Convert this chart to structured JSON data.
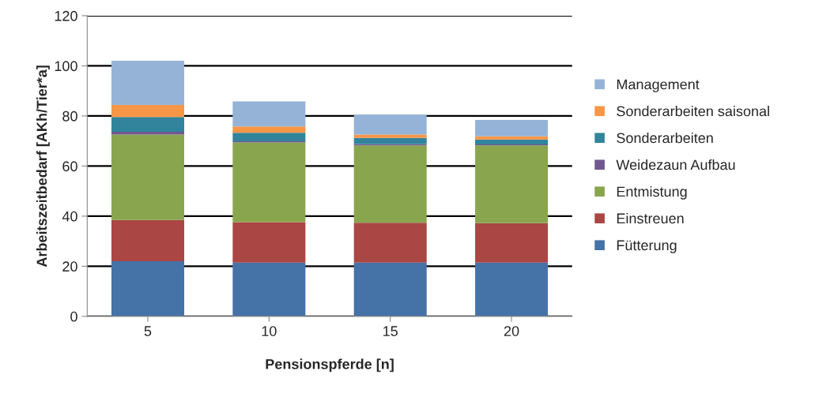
{
  "chart_data": {
    "type": "bar",
    "stacked": true,
    "xlabel": "Pensionspferde [n]",
    "ylabel": "Arbeitszeitbedarf [AKh/Tier*a]",
    "categories": [
      "5",
      "10",
      "15",
      "20"
    ],
    "series": [
      {
        "name": "Fütterung",
        "color": "#4572a7",
        "values": [
          22.0,
          21.5,
          21.5,
          21.5
        ]
      },
      {
        "name": "Einstreuen",
        "color": "#aa4643",
        "values": [
          16.5,
          16.1,
          15.9,
          15.7
        ]
      },
      {
        "name": "Entmistung",
        "color": "#89a54e",
        "values": [
          34.1,
          31.8,
          30.8,
          31.0
        ]
      },
      {
        "name": "Weidezaun Aufbau",
        "color": "#71588f",
        "values": [
          1.1,
          0.5,
          0.6,
          0.4
        ]
      },
      {
        "name": "Sonderarbeiten",
        "color": "#31849b",
        "values": [
          5.9,
          3.4,
          2.4,
          2.0
        ]
      },
      {
        "name": "Sonderarbeiten saisonal",
        "color": "#f79646",
        "values": [
          4.8,
          2.5,
          1.4,
          1.3
        ]
      },
      {
        "name": "Management",
        "color": "#95b3d7",
        "values": [
          17.6,
          10.0,
          7.9,
          6.5
        ]
      }
    ],
    "ylim": [
      0,
      120
    ],
    "yticks": [
      0,
      20,
      40,
      60,
      80,
      100,
      120
    ],
    "grid": "y",
    "legend": "right"
  }
}
